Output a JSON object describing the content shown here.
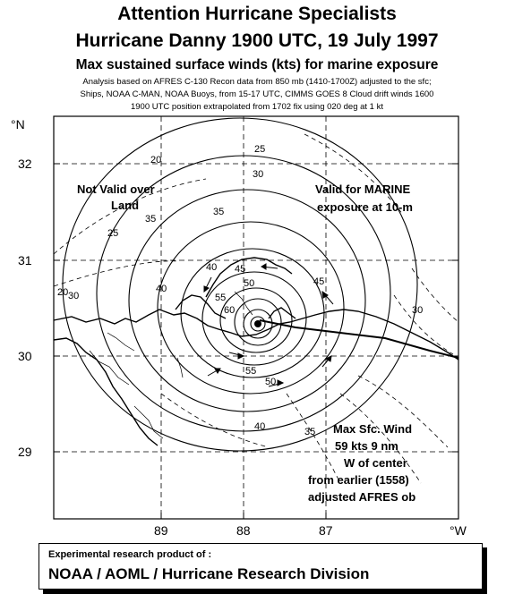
{
  "header": {
    "title_line1": "Attention Hurricane Specialists",
    "title_line2": "Hurricane Danny  1900 UTC, 19 July 1997",
    "title_line3": "Max sustained surface winds (kts) for marine exposure",
    "analysis_line1": "Analysis based on  AFRES C-130 Recon data from 850  mb (1410-1700Z) adjusted to the sfc;",
    "analysis_line2": "Ships, NOAA C-MAN, NOAA Buoys, from  15-17  UTC, CIMMS GOES 8 Cloud drift winds  1600",
    "analysis_line3": "1900 UTC position extrapolated from  1702 fix using 020 deg at 1 kt"
  },
  "map": {
    "lat_ticks": [
      "32",
      "31",
      "30",
      "29"
    ],
    "lon_ticks": [
      "89",
      "88",
      "87"
    ],
    "north_label": "°N",
    "west_label": "°W",
    "contour_labels": [
      "20",
      "25",
      "30",
      "35",
      "40",
      "45",
      "50",
      "55",
      "60",
      "35",
      "40",
      "50",
      "55",
      "30",
      "25",
      "20",
      "30",
      "35",
      "40",
      "45"
    ],
    "annotations": {
      "not_valid_1": "Not Valid over",
      "not_valid_2": "Land",
      "valid_1": "Valid for MARINE",
      "valid_2": "exposure at 10-m",
      "max_1": "Max Sfc. Wind",
      "max_2": "59 kts 9 nm",
      "max_3": "W of center",
      "max_4": "from earlier (1558)",
      "max_5": "adjusted  AFRES ob"
    }
  },
  "credit": {
    "line1": "Experimental research product of :",
    "line2": "NOAA / AOML / Hurricane Research Division"
  }
}
